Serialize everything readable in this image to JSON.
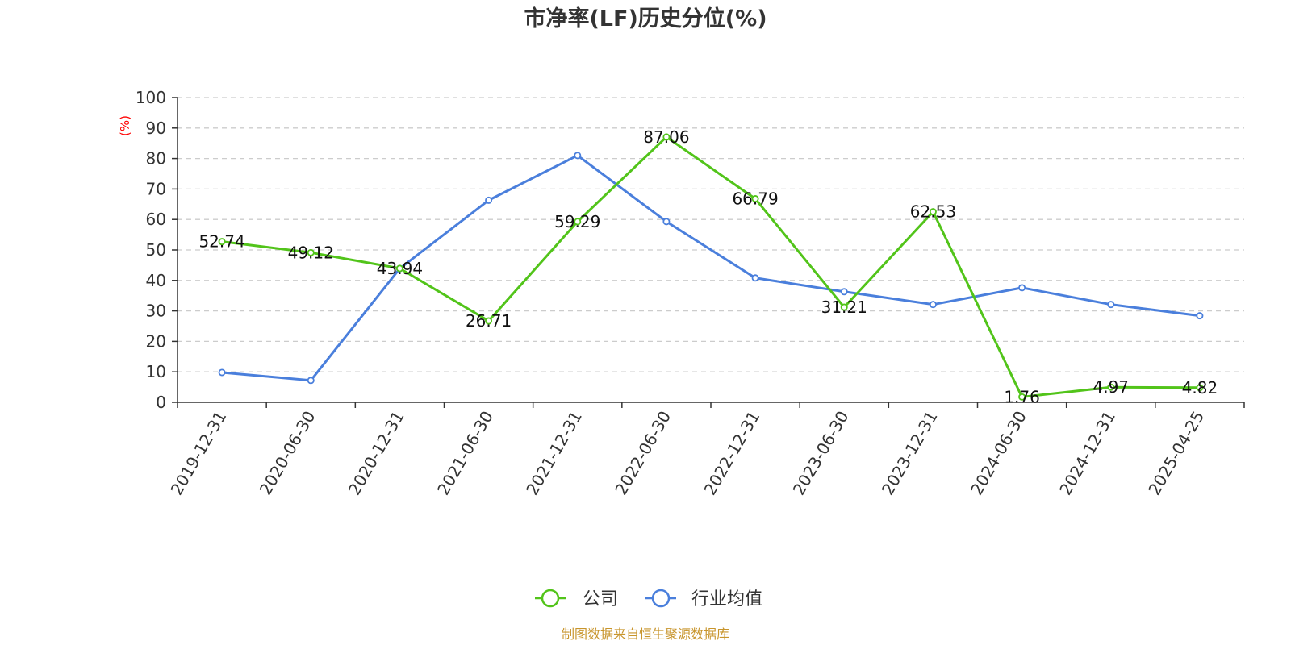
{
  "chart_data": {
    "type": "line",
    "title": "市净率(LF)历史分位(%)",
    "ylabel": "(%)",
    "xlabel": "",
    "ylim": [
      0,
      100
    ],
    "yticks": [
      0,
      10,
      20,
      30,
      40,
      50,
      60,
      70,
      80,
      90,
      100
    ],
    "grid": true,
    "legend_position": "bottom-center",
    "categories": [
      "2019-12-31",
      "2020-06-30",
      "2020-12-31",
      "2021-06-30",
      "2021-12-31",
      "2022-06-30",
      "2022-12-31",
      "2023-06-30",
      "2023-12-31",
      "2024-06-30",
      "2024-12-31",
      "2025-04-25"
    ],
    "series": [
      {
        "name": "公司",
        "color": "#52c41a",
        "values": [
          52.74,
          49.12,
          43.94,
          26.71,
          59.29,
          87.06,
          66.79,
          31.21,
          62.53,
          1.76,
          4.97,
          4.82
        ],
        "labels": [
          "52.74",
          "49.12",
          "43.94",
          "26.71",
          "59.29",
          "87.06",
          "66.79",
          "31.21",
          "62.53",
          "1.76",
          "4.97",
          "4.82"
        ]
      },
      {
        "name": "行业均值",
        "color": "#4a7fdc",
        "values": [
          9.8,
          7.2,
          43.9,
          66.3,
          81.0,
          59.3,
          40.8,
          36.3,
          32.1,
          37.6,
          32.1,
          28.4
        ]
      }
    ],
    "source": "制图数据来自恒生聚源数据库"
  }
}
